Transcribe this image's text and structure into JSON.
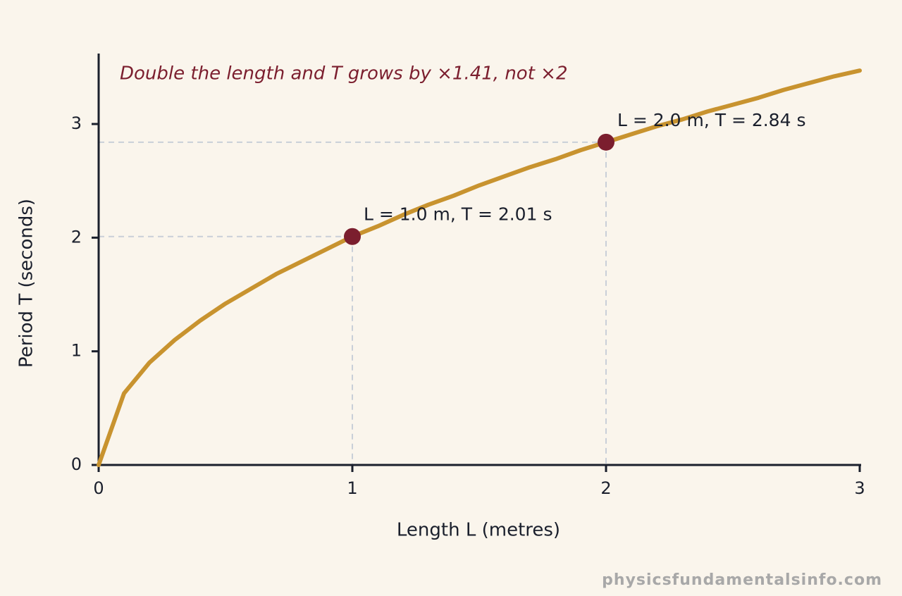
{
  "chart_data": {
    "type": "line",
    "annotation": "Double the length and T grows by ×1.41, not ×2",
    "xlabel": "Length L (metres)",
    "ylabel": "Period T (seconds)",
    "x": [
      0,
      0.1,
      0.2,
      0.3,
      0.4,
      0.5,
      0.6,
      0.7,
      0.8,
      0.9,
      1.0,
      1.1,
      1.2,
      1.3,
      1.4,
      1.5,
      1.6,
      1.7,
      1.8,
      1.9,
      2.0,
      2.1,
      2.2,
      2.3,
      2.4,
      2.5,
      2.6,
      2.7,
      2.8,
      2.9,
      3.0
    ],
    "values": [
      0,
      0.63,
      0.9,
      1.1,
      1.27,
      1.42,
      1.55,
      1.68,
      1.79,
      1.9,
      2.01,
      2.1,
      2.2,
      2.29,
      2.37,
      2.46,
      2.54,
      2.62,
      2.69,
      2.77,
      2.84,
      2.91,
      2.98,
      3.04,
      3.11,
      3.17,
      3.23,
      3.3,
      3.36,
      3.42,
      3.47
    ],
    "color": "#c8932f",
    "highlights": [
      {
        "x": 1.0,
        "y": 2.01,
        "label": "L = 1.0 m, T = 2.01 s"
      },
      {
        "x": 2.0,
        "y": 2.84,
        "label": "L = 2.0 m, T = 2.84 s"
      }
    ],
    "highlight_color": "#7b1e2e",
    "xlim": [
      0,
      3
    ],
    "ylim": [
      0,
      3.62
    ],
    "xticks": [
      0,
      1,
      2,
      3
    ],
    "yticks": [
      0,
      1,
      2,
      3
    ],
    "watermark": "physicsfundamentalsinfo.com"
  }
}
